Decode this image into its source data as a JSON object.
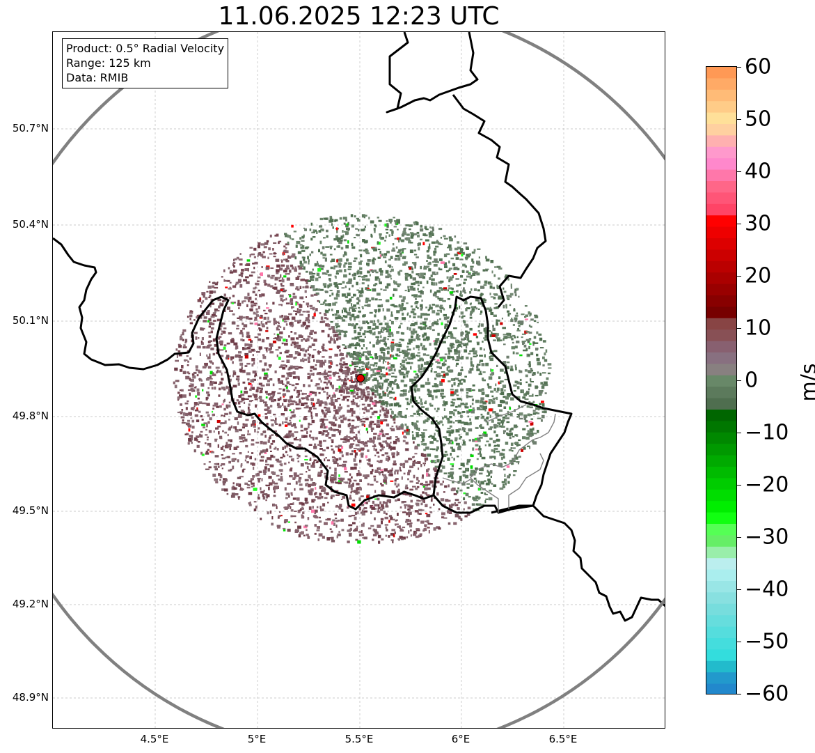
{
  "title": "11.06.2025 12:23 UTC",
  "info_box": {
    "product": "Product: 0.5° Radial Velocity",
    "range": "Range: 125 km",
    "data": "Data: RMIB"
  },
  "map": {
    "lat_labels": [
      "50.7°N",
      "50.4°N",
      "50.1°N",
      "49.8°N",
      "49.5°N",
      "49.2°N",
      "48.9°N"
    ],
    "lon_labels": [
      "4.5°E",
      "5°E",
      "5.5°E",
      "6°E",
      "6.5°E"
    ],
    "radar_site": {
      "lon": 5.5,
      "lat": 49.915
    },
    "range_ring_km": 125,
    "colors": {
      "range_ring": "#808080",
      "borders": "#000000",
      "subregions": "#808080",
      "radar_marker": "#e00000"
    }
  },
  "colorbar": {
    "unit": "m/s",
    "ticks": [
      "60",
      "50",
      "40",
      "30",
      "20",
      "10",
      "0",
      "−10",
      "−20",
      "−30",
      "−40",
      "−50",
      "−60"
    ],
    "range": [
      -60,
      60
    ],
    "colors_top_to_bottom": [
      "#ff9955",
      "#ffaa66",
      "#ffbb77",
      "#ffcc88",
      "#ffe099",
      "#ffd0a0",
      "#ffb0b0",
      "#ff99cc",
      "#ff88cc",
      "#ff77aa",
      "#ff6688",
      "#ff5577",
      "#ff4466",
      "#ff0000",
      "#ee0000",
      "#dd0000",
      "#cc0000",
      "#bb0000",
      "#aa0000",
      "#990000",
      "#880000",
      "#770000",
      "#884444",
      "#885055",
      "#886070",
      "#887080",
      "#888080",
      "#688868",
      "#5c7a5c",
      "#4f6e4f",
      "#006600",
      "#007700",
      "#008800",
      "#009900",
      "#00aa00",
      "#00bb00",
      "#00cc00",
      "#00dd00",
      "#00ee00",
      "#11ff11",
      "#55ff55",
      "#66ee66",
      "#99eeaa",
      "#bbeeee",
      "#aaeeee",
      "#99e6e6",
      "#88e0e0",
      "#77dddd",
      "#66dddd",
      "#55dddd",
      "#44dddd",
      "#33dddd",
      "#22bbcc",
      "#2299cc",
      "#2288cc"
    ]
  }
}
